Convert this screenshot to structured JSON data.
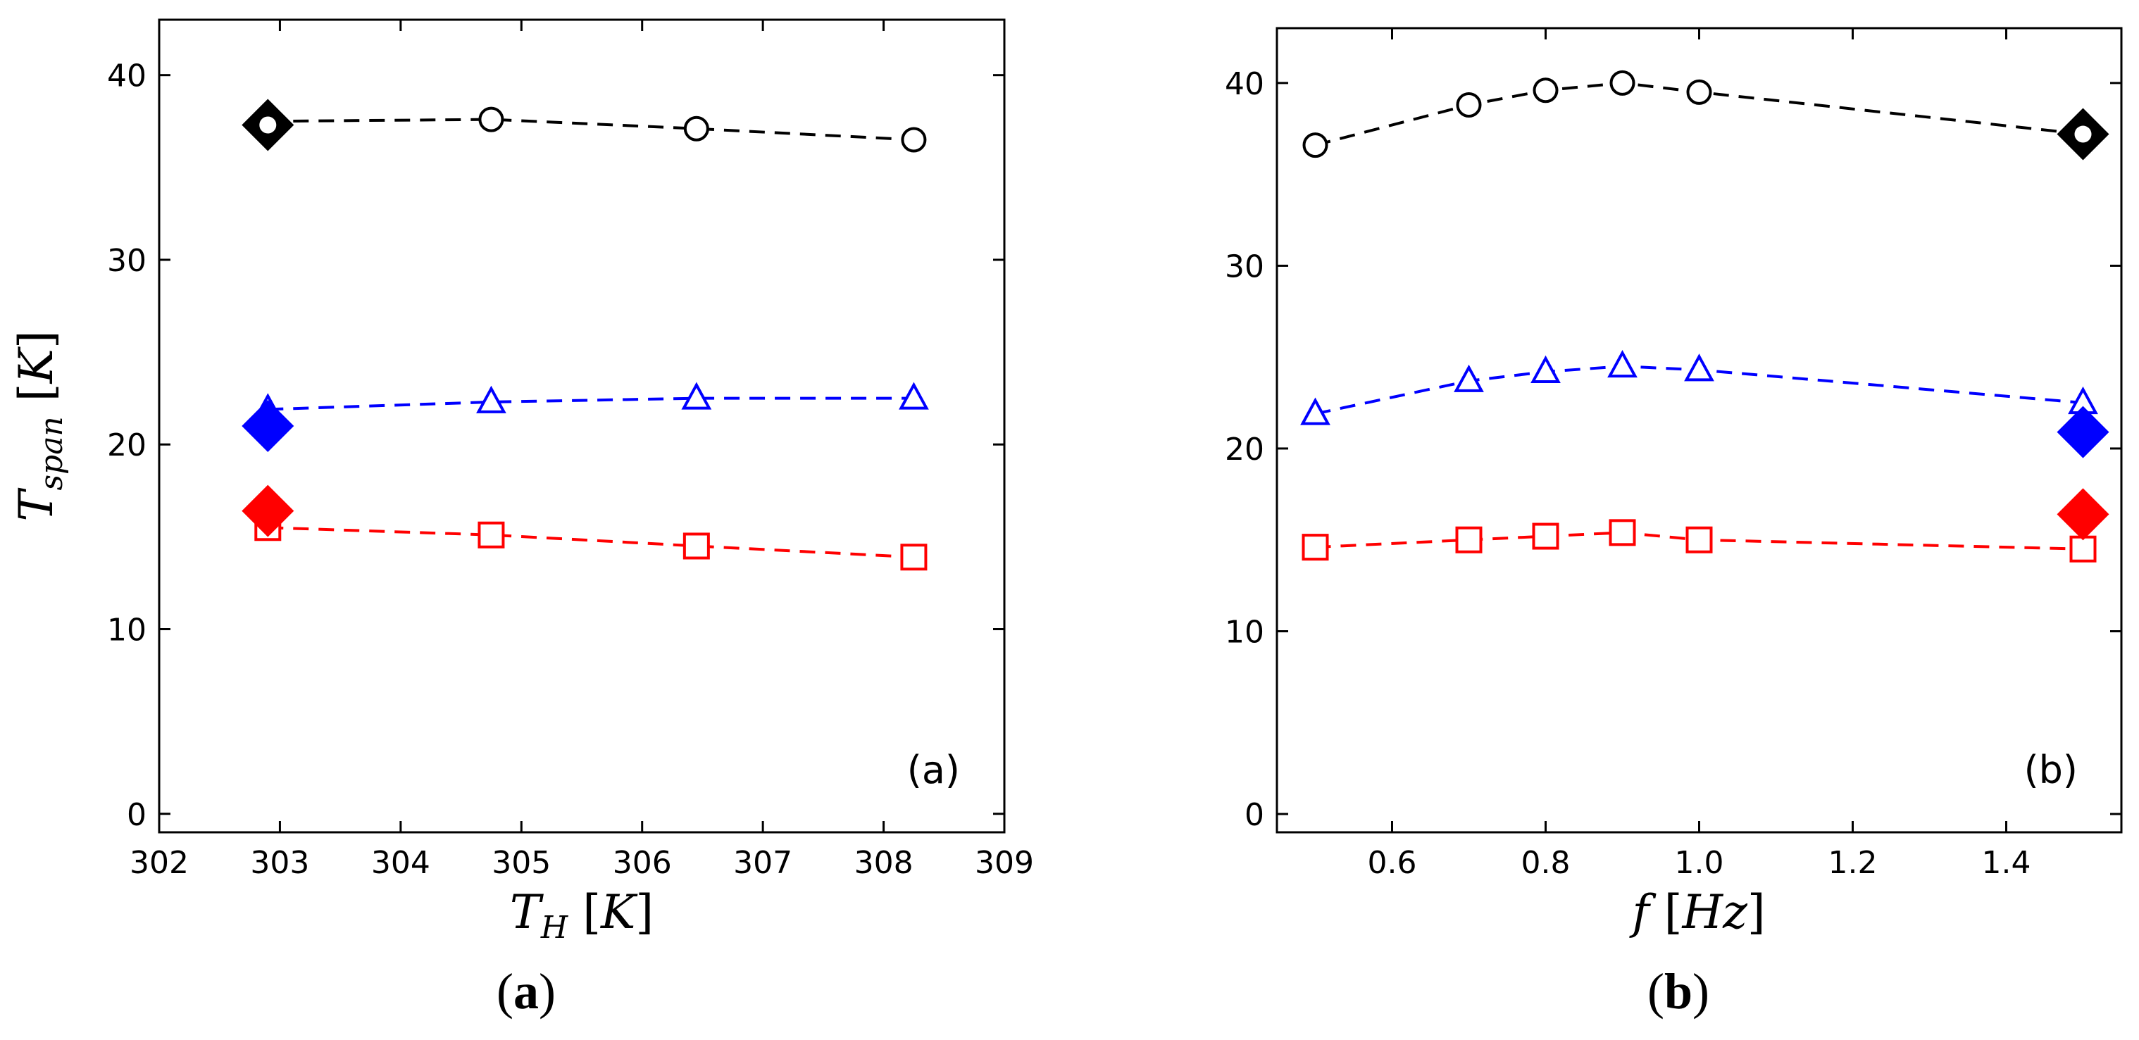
{
  "chart_data": [
    {
      "type": "scatter",
      "panel_tag": "(a)",
      "caption_tag": "a",
      "xlabel": "T_H [K]",
      "xlabel_main": "T",
      "xlabel_sub": "H",
      "xlabel_unit": "K",
      "ylabel": "T_span [K]",
      "ylabel_main": "T",
      "ylabel_sub": "span",
      "ylabel_unit": "K",
      "xlim": [
        302,
        309
      ],
      "ylim": [
        -1,
        43
      ],
      "xticks": [
        302,
        303,
        304,
        305,
        306,
        307,
        308,
        309
      ],
      "xtick_labels": [
        "302",
        "303",
        "304",
        "305",
        "306",
        "307",
        "308",
        "309"
      ],
      "yticks": [
        0,
        10,
        20,
        30,
        40
      ],
      "ytick_labels": [
        "0",
        "10",
        "20",
        "30",
        "40"
      ],
      "grid": false,
      "series": [
        {
          "marker": "circle",
          "color": "#000000",
          "x": [
            302.9,
            304.75,
            306.45,
            308.25
          ],
          "y": [
            37.5,
            37.6,
            37.1,
            36.5
          ]
        },
        {
          "marker": "triangle",
          "color": "#0000ff",
          "x": [
            302.9,
            304.75,
            306.45,
            308.25
          ],
          "y": [
            21.9,
            22.3,
            22.5,
            22.5
          ]
        },
        {
          "marker": "square",
          "color": "#ff0000",
          "x": [
            302.9,
            304.75,
            306.45,
            308.25
          ],
          "y": [
            15.5,
            15.1,
            14.5,
            13.9
          ]
        }
      ],
      "diamonds": [
        {
          "color": "#000000",
          "x": 302.9,
          "y": 37.3
        },
        {
          "color": "#0000ff",
          "x": 302.9,
          "y": 21.0
        },
        {
          "color": "#ff0000",
          "x": 302.9,
          "y": 16.4
        }
      ]
    },
    {
      "type": "scatter",
      "panel_tag": "(b)",
      "caption_tag": "b",
      "xlabel": "f [Hz]",
      "xlabel_main": "f",
      "xlabel_sub": "",
      "xlabel_unit": "Hz",
      "ylabel": "",
      "xlim": [
        0.45,
        1.55
      ],
      "ylim": [
        -1,
        43
      ],
      "xticks": [
        0.6,
        0.8,
        1.0,
        1.2,
        1.4
      ],
      "xtick_labels": [
        "0.6",
        "0.8",
        "1.0",
        "1.2",
        "1.4"
      ],
      "yticks": [
        0,
        10,
        20,
        30,
        40
      ],
      "ytick_labels": [
        "0",
        "10",
        "20",
        "30",
        "40"
      ],
      "grid": false,
      "series": [
        {
          "marker": "circle",
          "color": "#000000",
          "x": [
            0.5,
            0.7,
            0.8,
            0.9,
            1.0,
            1.5
          ],
          "y": [
            36.6,
            38.8,
            39.6,
            40.0,
            39.5,
            37.2
          ]
        },
        {
          "marker": "triangle",
          "color": "#0000ff",
          "x": [
            0.5,
            0.7,
            0.8,
            0.9,
            1.0,
            1.5
          ],
          "y": [
            21.9,
            23.7,
            24.2,
            24.5,
            24.3,
            22.5
          ]
        },
        {
          "marker": "square",
          "color": "#ff0000",
          "x": [
            0.5,
            0.7,
            0.8,
            0.9,
            1.0,
            1.5
          ],
          "y": [
            14.6,
            15.0,
            15.2,
            15.4,
            15.0,
            14.5
          ]
        }
      ],
      "diamonds": [
        {
          "color": "#000000",
          "x": 1.5,
          "y": 37.2
        },
        {
          "color": "#0000ff",
          "x": 1.5,
          "y": 20.9
        },
        {
          "color": "#ff0000",
          "x": 1.5,
          "y": 16.4
        }
      ]
    }
  ]
}
